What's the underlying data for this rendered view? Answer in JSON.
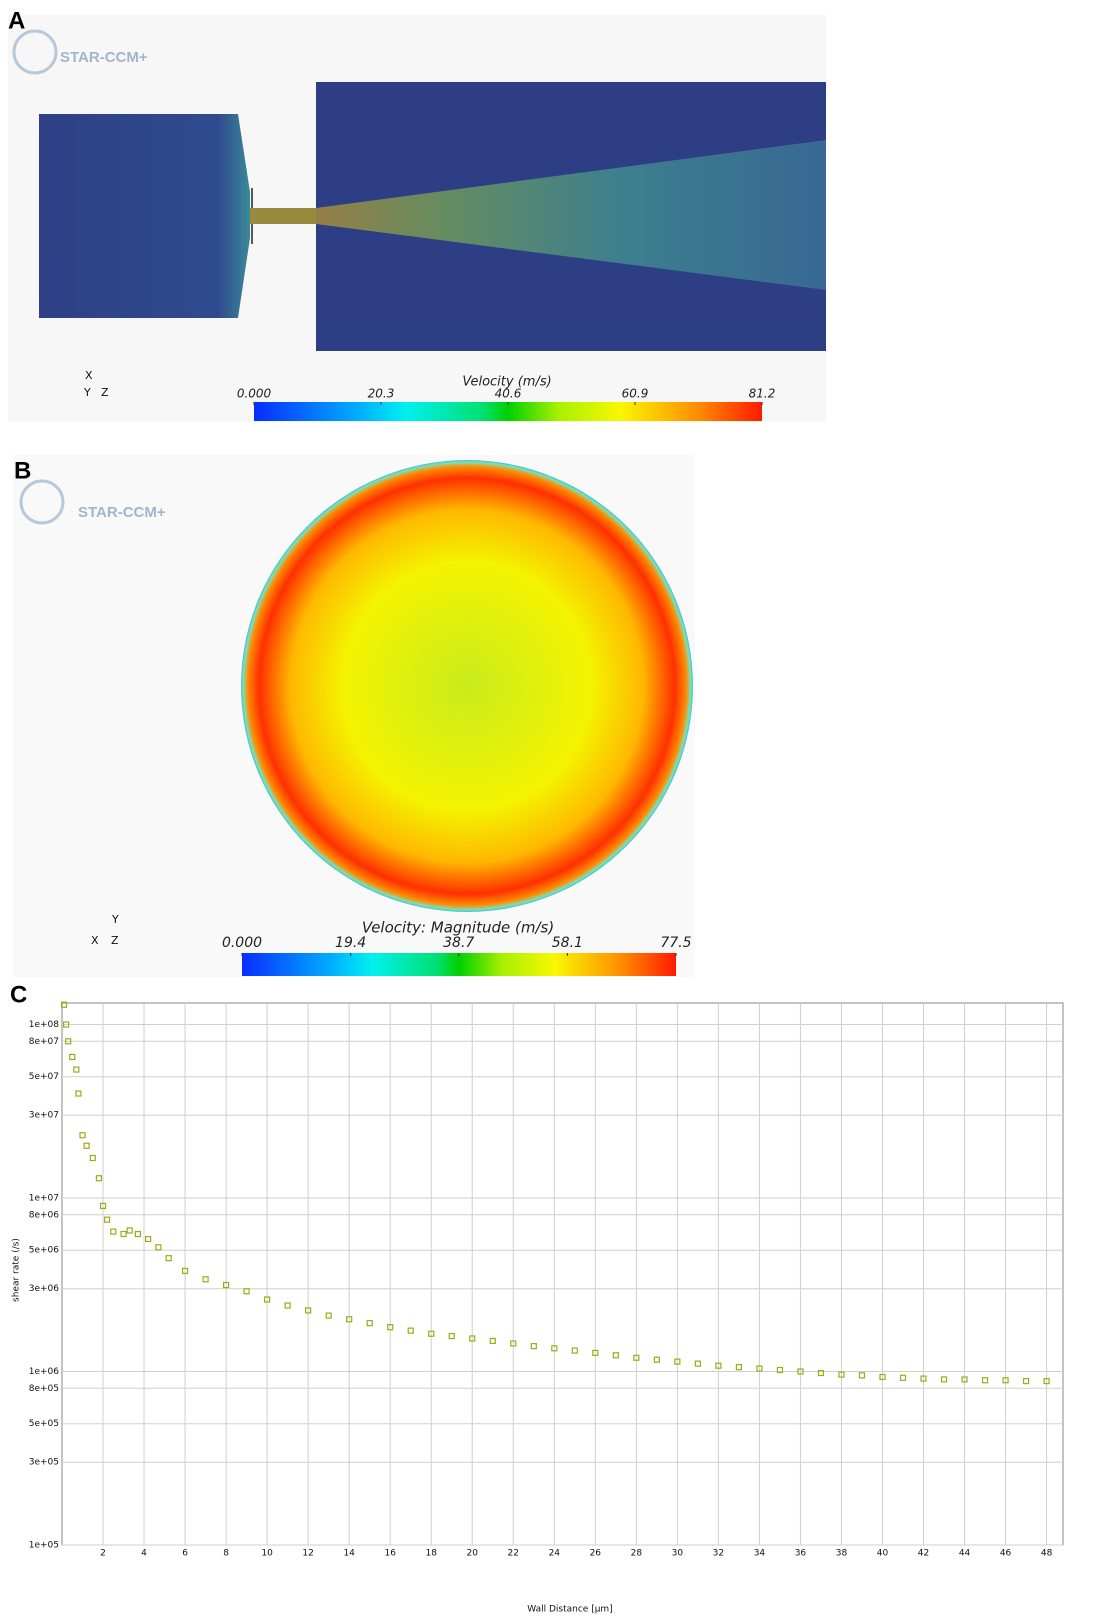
{
  "chart_data": [
    {
      "type": "field",
      "panel": "A",
      "logo": "STAR-CCM+",
      "triad": [
        "X",
        "Y",
        "Z"
      ],
      "colorbar_title": "Velocity (m/s)",
      "xlim": [
        0,
        81.2
      ],
      "xticks": [
        {
          "value": 0,
          "label": "0.000"
        },
        20.3,
        40.6,
        60.9,
        81.2
      ]
    },
    {
      "type": "field",
      "panel": "B",
      "logo": "STAR-CCM+",
      "triad": [
        "Y",
        "X",
        "Z"
      ],
      "colorbar_title": "Velocity: Magnitude (m/s)",
      "xlim": [
        0,
        77.5
      ],
      "xticks": [
        {
          "value": 0,
          "label": "0.000"
        },
        19.4,
        38.7,
        58.1,
        77.5
      ]
    },
    {
      "type": "scatter",
      "panel": "C",
      "xlabel": "Wall Distance [μm]",
      "ylabel": "shear rate (/s)",
      "log_y": true,
      "grid": true,
      "color": "#9aab1a",
      "xlim": [
        0,
        48.8
      ],
      "xticks": [
        2,
        4,
        6,
        8,
        10,
        12,
        14,
        16,
        18,
        20,
        22,
        24,
        26,
        28,
        30,
        32,
        34,
        36,
        38,
        40,
        42,
        44,
        46,
        48
      ],
      "ylim": [
        100000,
        133000000
      ],
      "yticks": [
        {
          "value": 100000,
          "label": "1e+05"
        },
        {
          "value": 300000,
          "label": "3e+05"
        },
        {
          "value": 500000,
          "label": "5e+05"
        },
        {
          "value": 800000,
          "label": "8e+05"
        },
        {
          "value": 1000000,
          "label": "1e+06"
        },
        {
          "value": 3000000,
          "label": "3e+06"
        },
        {
          "value": 5000000,
          "label": "5e+06"
        },
        {
          "value": 8000000,
          "label": "8e+06"
        },
        {
          "value": 10000000,
          "label": "1e+07"
        },
        {
          "value": 30000000,
          "label": "3e+07"
        },
        {
          "value": 50000000,
          "label": "5e+07"
        },
        {
          "value": 80000000,
          "label": "8e+07"
        },
        {
          "value": 100000000,
          "label": "1e+08"
        }
      ],
      "x": [
        0.1,
        0.2,
        0.3,
        0.5,
        0.7,
        0.8,
        1.0,
        1.2,
        1.5,
        1.8,
        2.0,
        2.2,
        2.5,
        3.0,
        3.3,
        3.7,
        4.2,
        4.7,
        5.2,
        6,
        7,
        8,
        9,
        10,
        11,
        12,
        13,
        14,
        15,
        16,
        17,
        18,
        19,
        20,
        21,
        22,
        23,
        24,
        25,
        26,
        27,
        28,
        29,
        30,
        31,
        32,
        33,
        34,
        35,
        36,
        37,
        38,
        39,
        40,
        41,
        42,
        43,
        44,
        45,
        46,
        47,
        48
      ],
      "y": [
        130000000,
        100000000,
        80000000,
        65000000,
        55000000,
        40000000,
        23000000,
        20000000,
        17000000,
        13000000,
        9000000,
        7500000,
        6400000,
        6200000,
        6500000,
        6200000,
        5800000,
        5200000,
        4500000,
        3800000,
        3400000,
        3150000,
        2900000,
        2600000,
        2400000,
        2250000,
        2100000,
        2000000,
        1900000,
        1800000,
        1720000,
        1650000,
        1600000,
        1550000,
        1500000,
        1450000,
        1400000,
        1360000,
        1320000,
        1280000,
        1240000,
        1200000,
        1170000,
        1140000,
        1110000,
        1080000,
        1060000,
        1040000,
        1020000,
        1000000,
        980000,
        960000,
        950000,
        930000,
        920000,
        910000,
        900000,
        900000,
        890000,
        890000,
        880000,
        880000
      ]
    }
  ]
}
